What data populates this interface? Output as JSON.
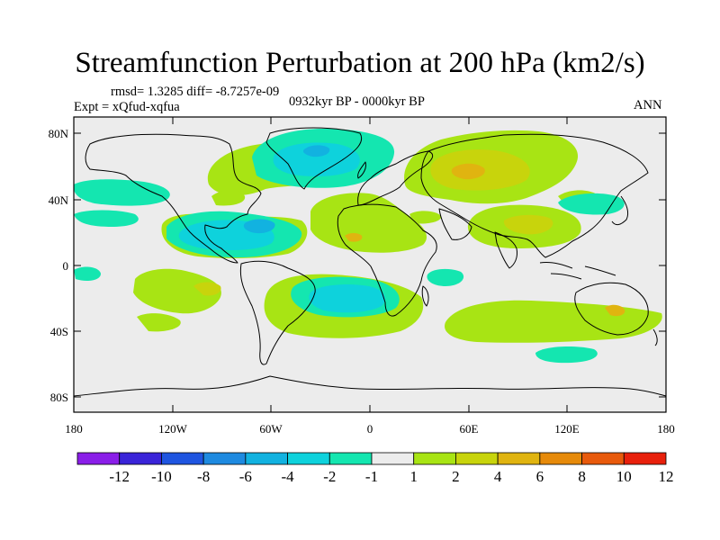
{
  "title": "Streamfunction Perturbation at 200 hPa (km2/s)",
  "stats_line": "rmsd= 1.3285 diff= -8.7257e-09",
  "experiment": "Expt = xQfud-xqfua",
  "period": "0932kyr BP - 0000kyr BP",
  "season": "ANN",
  "lat_ticks": [
    "80N",
    "40N",
    "0",
    "40S",
    "80S"
  ],
  "lon_ticks": [
    "180",
    "120W",
    "60W",
    "0",
    "60E",
    "120E",
    "180"
  ],
  "colorbar": {
    "labels": [
      "-12",
      "-10",
      "-8",
      "-6",
      "-4",
      "-2",
      "-1",
      "1",
      "2",
      "4",
      "6",
      "8",
      "10",
      "12"
    ],
    "colors": [
      "#8a1ee8",
      "#3a24d8",
      "#1f55e0",
      "#1e8ae0",
      "#12b2e0",
      "#0ed2dc",
      "#14e6b0",
      "#ececec",
      "#a8e414",
      "#c8d40c",
      "#e0b410",
      "#e68a0a",
      "#e85a0c",
      "#e8200c"
    ]
  }
}
